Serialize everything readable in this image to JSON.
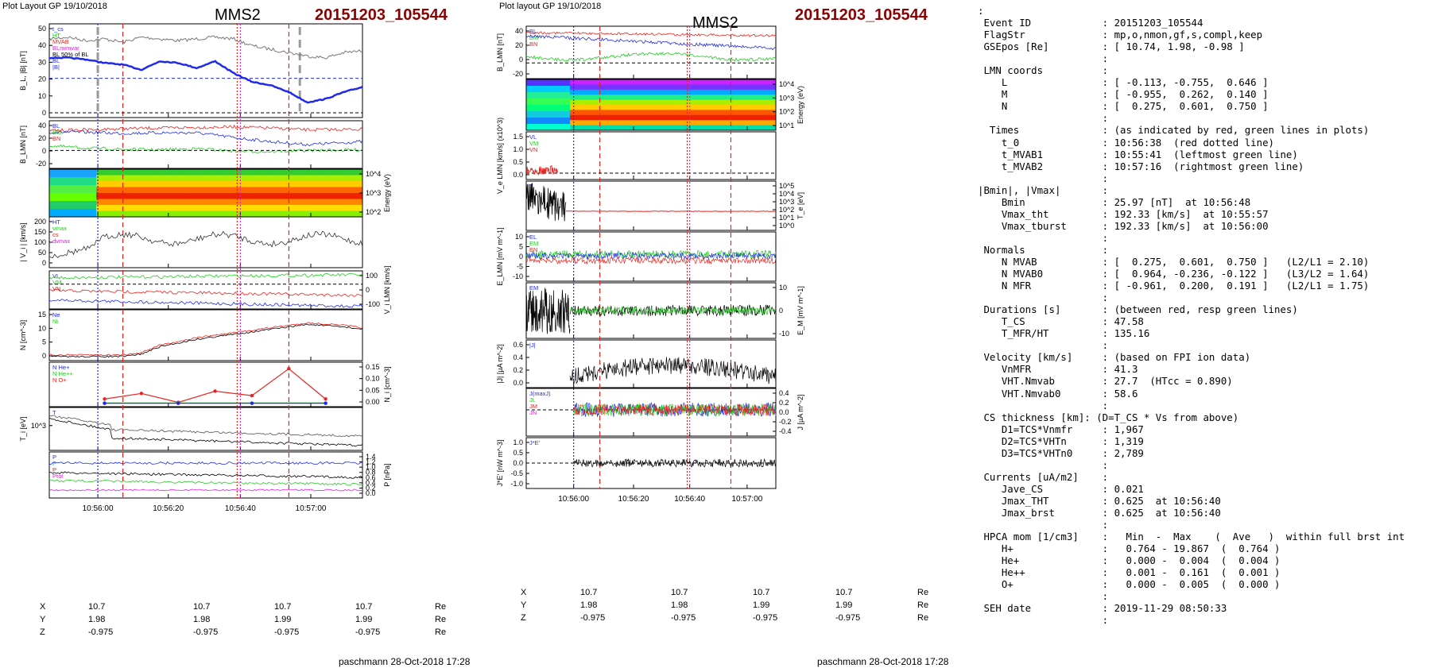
{
  "colors": {
    "red": "#e8231f",
    "green": "#22cc22",
    "blue": "#1f2be8",
    "magenta": "#e020e0",
    "black": "#000000",
    "event": "#8b0000"
  },
  "header": {
    "left_plot_label": "Plot Layout GP 19/10/2018",
    "right_plot_label": "Plot layout GP 19/10/2018",
    "spacecraft": "MMS2",
    "event_id": "20151203_105544"
  },
  "footer": {
    "left": "paschmann 28-Oct-2018 17:28",
    "right": "paschmann 28-Oct-2018 17:28"
  },
  "time_axis": [
    "10:56:00",
    "10:56:20",
    "10:56:40",
    "10:57:00"
  ],
  "positions": {
    "rows": [
      {
        "label": "X",
        "values": [
          "10.7",
          "10.7",
          "10.7",
          "10.7"
        ],
        "unit": "Re"
      },
      {
        "label": "Y",
        "values": [
          "1.98",
          "1.98",
          "1.99",
          "1.99"
        ],
        "unit": "Re"
      },
      {
        "label": "Z",
        "values": [
          "-0.975",
          "-0.975",
          "-0.975",
          "-0.975"
        ],
        "unit": "Re"
      }
    ]
  },
  "left_panels": [
    {
      "ylabel": "B_L, |B| [nT]",
      "ticks": [
        "50",
        "40",
        "30",
        "20",
        "10",
        "0"
      ],
      "legend": [
        "t_cs",
        "HT",
        "MVAB",
        "BLmimvar",
        "BL 50% of BL",
        "BL",
        "|B|"
      ]
    },
    {
      "ylabel": "B_LMN [nT]",
      "ticks": [
        "40",
        "20",
        "0",
        "-20"
      ],
      "legend": [
        "BL",
        "BM",
        "BN"
      ]
    },
    {
      "ylabel": "Energy (eV)",
      "ticks": [
        "10^4",
        "10^3",
        "10^2"
      ]
    },
    {
      "ylabel": "| V_i | [km/s]",
      "ticks": [
        "200",
        "150",
        "100",
        "50",
        "0"
      ],
      "legend": [
        "HT",
        "vmax",
        "cs",
        "dvmax"
      ]
    },
    {
      "ylabel": "V_i LMN [km/s]",
      "ticks": [
        "100",
        "0",
        "-100"
      ],
      "legend": [
        "VL",
        "VM",
        "VN"
      ]
    },
    {
      "ylabel": "N [cm^-3]",
      "ticks": [
        "15",
        "10",
        "5",
        "0"
      ],
      "legend": [
        "Ne",
        "Ni"
      ]
    },
    {
      "ylabel": "N_i [cm^-3]",
      "ticks": [
        "0.15",
        "0.10",
        "0.05",
        "0.00"
      ],
      "legend": [
        "N He+",
        "N He++",
        "N O+"
      ]
    },
    {
      "ylabel": "T_i [eV]",
      "ticks": [
        "10^3"
      ],
      "legend": [
        "T"
      ]
    },
    {
      "ylabel": "P [nPa]",
      "ticks": [
        "1.4",
        "1.2",
        "1.0",
        "0.8",
        "0.6",
        "0.4",
        "0.2",
        "0.0"
      ],
      "legend": [
        "P",
        "P",
        "P",
        "Ptot"
      ]
    }
  ],
  "right_panels": [
    {
      "ylabel": "B_LMN [nT]",
      "ticks": [
        "40",
        "20",
        "0",
        "-20"
      ],
      "legend": [
        "BL",
        "BM",
        "BN"
      ]
    },
    {
      "ylabel": "Energy (eV)",
      "ticks": [
        "10^4",
        "10^3",
        "10^2",
        "10^1"
      ]
    },
    {
      "ylabel": "V_e LMN [km/s] (x10^3)",
      "ticks": [
        "1.5",
        "1.0",
        "0.5",
        "0.0"
      ],
      "legend": [
        "VL",
        "VM",
        "VN"
      ]
    },
    {
      "ylabel": "T_e [eV]",
      "ticks": [
        "10^5",
        "10^4",
        "10^3",
        "10^2",
        "10^1",
        "10^0"
      ],
      "legend": [
        "T"
      ]
    },
    {
      "ylabel": "E_LMN [mV m^-1]",
      "ticks": [
        "10",
        "5",
        "0",
        "-5",
        "-10"
      ],
      "legend": [
        "EL",
        "EM",
        "EN"
      ]
    },
    {
      "ylabel": "E_M [mV m^-1]",
      "ticks": [
        "10",
        "0",
        "-10"
      ],
      "legend": [
        "EM"
      ]
    },
    {
      "ylabel": "|J| [µA m^-2]",
      "ticks": [
        "0.6",
        "0.4",
        "0.2",
        "0.0"
      ],
      "legend": [
        "|J|"
      ]
    },
    {
      "ylabel": "J [µA m^-2]",
      "ticks": [
        "0.4",
        "0.2",
        "0.0",
        "-0.2",
        "-0.4"
      ],
      "legend": [
        "J(maxJ)",
        "JL",
        "JM",
        "JN"
      ]
    },
    {
      "ylabel": "J*E' [nW m^-3]",
      "ticks": [
        "1.0",
        "0.5",
        "0.0",
        "-0.5",
        "-1.0"
      ],
      "legend": [
        "J*E'"
      ]
    }
  ],
  "info_lines": [
    ":",
    " Event ID            : 20151203_105544",
    " FlagStr             : mp,o,nmon,gf,s,compl,keep",
    " GSEpos [Re]         : [ 10.74, 1.98, -0.98 ]",
    "                     :",
    " LMN coords          :",
    "    L                : [ -0.113, -0.755,  0.646 ]",
    "    M                : [ -0.955,  0.262,  0.140 ]",
    "    N                : [  0.275,  0.601,  0.750 ]",
    "                     :",
    "  Times              : (as indicated by red, green lines in plots)",
    "    t_0              : 10:56:38  (red dotted line)",
    "    t_MVAB1          : 10:55:41  (leftmost green line)",
    "    t_MVAB2          : 10:57:16  (rightmost green line)",
    "                     :",
    "|Bmin|, |Vmax|       :",
    "    Bmin             : 25.97 [nT]  at 10:56:48",
    "    Vmax_tht         : 192.33 [km/s]  at 10:55:57",
    "    Vmax_tburst      : 192.33 [km/s]  at 10:56:00",
    "                     :",
    " Normals             :",
    "    N MVAB           : [  0.275,  0.601,  0.750 ]   (L2/L1 = 2.10)",
    "    N MVAB0          : [  0.964, -0.236, -0.122 ]   (L3/L2 = 1.64)",
    "    N MFR            : [ -0.961,  0.200,  0.191 ]   (L2/L1 = 1.75)",
    "                     :",
    " Durations [s]       : (between red, resp green lines)",
    "    T_CS             : 47.58",
    "    T_MFR/HT         : 135.16",
    "                     :",
    " Velocity [km/s]     : (based on FPI ion data)",
    "    VnMFR            : 41.3",
    "    VHT.Nmvab        : 27.7  (HTcc = 0.890)",
    "    VHT.Nmvab0       : 58.6",
    "                     :",
    " CS thickness [km]: (D=T_CS * Vs from above)",
    "    D1=TCS*Vnmfr     : 1,967",
    "    D2=TCS*VHTn      : 1,319",
    "    D3=TCS*VHTn0     : 2,789",
    "                     :",
    " Currents [uA/m2]    :",
    "    Jave_CS          : 0.021",
    "    Jmax_THT         : 0.625  at 10:56:40",
    "    Jmax_brst        : 0.625  at 10:56:40",
    "                     :",
    " HPCA mom [1/cm3]    :   Min  -  Max    (  Ave   )  within full brst int",
    "    H+               :   0.764 - 19.867  (  0.764 )",
    "    He+              :   0.000 -  0.004  (  0.004 )",
    "    He++             :   0.001 -  0.161  (  0.001 )",
    "    O+               :   0.000 -  0.005  (  0.000 )",
    "                     :",
    " SEH date            : 2019-11-29 08:50:33",
    "                     :"
  ],
  "chart_data": [
    {
      "type": "line",
      "title": "MMS2 20151203_105544",
      "x_tick_labels": [
        "10:56:00",
        "10:56:20",
        "10:56:40",
        "10:57:00"
      ],
      "x_range_seconds_from_105540": [
        0,
        85
      ],
      "marker_times": {
        "red_dashed": [
          "10:56:05",
          "10:56:52"
        ],
        "red_dotted": "10:56:38",
        "magenta_dotted": "10:56:40",
        "blue_dotted": "10:55:59",
        "grey_dashed": [
          "10:55:49",
          "10:56:55"
        ]
      },
      "panels_left": [
        {
          "name": "B_L |B|",
          "ylim": [
            0,
            50
          ],
          "series": [
            {
              "name": "|B|",
              "x": [
                0,
                5,
                10,
                15,
                20,
                25,
                30,
                35,
                40,
                45,
                50,
                55,
                60,
                65,
                70,
                75,
                80,
                85
              ],
              "values": [
                44,
                45,
                43,
                44,
                42,
                45,
                44,
                43,
                44,
                45,
                44,
                40,
                38,
                36,
                34,
                33,
                36,
                37
              ]
            },
            {
              "name": "BL",
              "x": [
                0,
                5,
                10,
                15,
                20,
                25,
                30,
                35,
                40,
                45,
                50,
                55,
                60,
                65,
                70,
                75,
                80,
                85
              ],
              "values": [
                33,
                33,
                32,
                30,
                29,
                26,
                31,
                30,
                27,
                31,
                24,
                19,
                17,
                13,
                7,
                9,
                13,
                16
              ]
            },
            {
              "name": "BL 50% of BL",
              "x": [
                0,
                85
              ],
              "values": [
                21,
                21
              ]
            }
          ]
        },
        {
          "name": "B_LMN",
          "ylim": [
            -25,
            45
          ],
          "series": [
            {
              "name": "BL",
              "x": [
                0,
                10,
                20,
                30,
                40,
                50,
                60,
                70,
                85
              ],
              "values": [
                31,
                31,
                29,
                30,
                30,
                22,
                15,
                10,
                15
              ]
            },
            {
              "name": "BM",
              "x": [
                0,
                10,
                20,
                30,
                40,
                50,
                60,
                70,
                85
              ],
              "values": [
                34,
                35,
                37,
                38,
                39,
                40,
                38,
                35,
                36
              ]
            },
            {
              "name": "BN",
              "x": [
                0,
                10,
                20,
                30,
                40,
                50,
                60,
                70,
                85
              ],
              "values": [
                8,
                4,
                2,
                1,
                3,
                -1,
                -2,
                0,
                1
              ]
            }
          ]
        },
        {
          "name": "N",
          "ylim": [
            0,
            18
          ],
          "series": [
            {
              "name": "Ne",
              "x": [
                0,
                15,
                20,
                25,
                30,
                40,
                50,
                60,
                70,
                80,
                85
              ],
              "values": [
                1,
                1,
                1,
                2,
                5,
                8,
                10,
                12,
                14,
                13,
                12
              ]
            },
            {
              "name": "Ni",
              "x": [
                0,
                15,
                20,
                25,
                30,
                40,
                50,
                60,
                70,
                80,
                85
              ],
              "values": [
                1,
                1,
                1,
                2,
                5,
                8,
                10,
                12,
                14,
                13,
                12
              ]
            }
          ]
        },
        {
          "name": "N_i",
          "ylim": [
            0,
            0.17
          ],
          "series": [
            {
              "name": "N He++",
              "x": [
                15,
                25,
                35,
                45,
                55,
                65,
                75
              ],
              "values": [
                0.02,
                0.045,
                0.005,
                0.055,
                0.035,
                0.155,
                0.02
              ]
            },
            {
              "name": "N He+",
              "x": [
                15,
                35,
                55,
                75
              ],
              "values": [
                0.002,
                0.002,
                0.002,
                0.002
              ]
            },
            {
              "name": "N O+",
              "x": [
                15,
                35,
                55,
                75
              ],
              "values": [
                0.001,
                0.001,
                0.001,
                0.001
              ]
            }
          ]
        }
      ]
    }
  ]
}
